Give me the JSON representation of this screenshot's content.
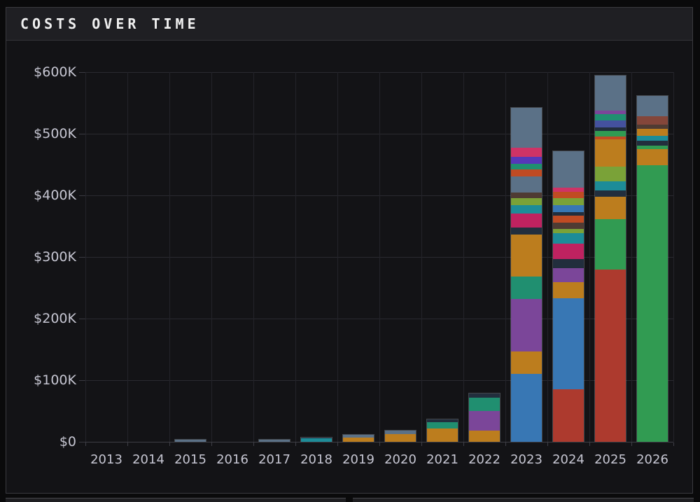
{
  "header": {
    "title": "COSTS OVER TIME"
  },
  "chart_data": {
    "type": "bar",
    "stacked": true,
    "title": "COSTS OVER TIME",
    "xlabel": "",
    "ylabel": "",
    "unit": "USD thousands",
    "ylim": [
      0,
      600
    ],
    "grid": true,
    "yticks": [
      {
        "value": 0,
        "label": "$0"
      },
      {
        "value": 100,
        "label": "$100K"
      },
      {
        "value": 200,
        "label": "$200K"
      },
      {
        "value": 300,
        "label": "$300K"
      },
      {
        "value": 400,
        "label": "$400K"
      },
      {
        "value": 500,
        "label": "$500K"
      },
      {
        "value": 600,
        "label": "$600K"
      }
    ],
    "categories": [
      "2013",
      "2014",
      "2015",
      "2016",
      "2017",
      "2018",
      "2019",
      "2020",
      "2021",
      "2022",
      "2023",
      "2024",
      "2025",
      "2026"
    ],
    "palette": {
      "slate": "#5b7187",
      "blue": "#3877b4",
      "orange": "#bc7d1e",
      "purple": "#7b4699",
      "violet": "#5737b9",
      "teal_green": "#208f70",
      "green": "#319b52",
      "red": "#ad3a2e",
      "crimson": "#bf2260",
      "pink": "#ce3366",
      "navy": "#222e3d",
      "teal_cyan": "#1d8c98",
      "olive": "#7aa238",
      "orange_red": "#c04b23",
      "brown": "#4f3b33",
      "sienna": "#84463a",
      "indigo": "#44519f"
    },
    "bars": [
      {
        "category": "2013",
        "segments": []
      },
      {
        "category": "2014",
        "segments": []
      },
      {
        "category": "2015",
        "segments": [
          [
            "slate",
            4
          ]
        ]
      },
      {
        "category": "2016",
        "segments": []
      },
      {
        "category": "2017",
        "segments": [
          [
            "slate",
            5
          ]
        ]
      },
      {
        "category": "2018",
        "segments": [
          [
            "teal_cyan",
            6
          ],
          [
            "navy",
            2
          ]
        ]
      },
      {
        "category": "2019",
        "segments": [
          [
            "orange",
            7
          ],
          [
            "slate",
            5
          ]
        ]
      },
      {
        "category": "2020",
        "segments": [
          [
            "orange",
            13
          ],
          [
            "slate",
            6
          ]
        ]
      },
      {
        "category": "2021",
        "segments": [
          [
            "orange",
            22
          ],
          [
            "teal_green",
            11
          ],
          [
            "navy",
            5
          ]
        ]
      },
      {
        "category": "2022",
        "segments": [
          [
            "orange",
            18
          ],
          [
            "purple",
            33
          ],
          [
            "teal_green",
            22
          ],
          [
            "navy",
            7
          ]
        ]
      },
      {
        "category": "2023",
        "segments": [
          [
            "blue",
            110
          ],
          [
            "orange",
            37
          ],
          [
            "purple",
            85
          ],
          [
            "teal_green",
            37
          ],
          [
            "orange",
            68
          ],
          [
            "navy",
            11
          ],
          [
            "crimson",
            23
          ],
          [
            "teal_cyan",
            14
          ],
          [
            "olive",
            11
          ],
          [
            "brown",
            9
          ],
          [
            "slate",
            27
          ],
          [
            "orange_red",
            11
          ],
          [
            "teal_green",
            9
          ],
          [
            "violet",
            11
          ],
          [
            "pink",
            15
          ],
          [
            "slate",
            65
          ]
        ]
      },
      {
        "category": "2024",
        "segments": [
          [
            "red",
            85
          ],
          [
            "blue",
            148
          ],
          [
            "orange",
            27
          ],
          [
            "purple",
            23
          ],
          [
            "navy",
            14
          ],
          [
            "crimson",
            25
          ],
          [
            "teal_cyan",
            17
          ],
          [
            "olive",
            7
          ],
          [
            "brown",
            11
          ],
          [
            "orange_red",
            11
          ],
          [
            "navy",
            6
          ],
          [
            "blue",
            11
          ],
          [
            "olive",
            11
          ],
          [
            "orange_red",
            11
          ],
          [
            "pink",
            6
          ],
          [
            "slate",
            60
          ]
        ]
      },
      {
        "category": "2025",
        "segments": [
          [
            "red",
            280
          ],
          [
            "green",
            82
          ],
          [
            "orange",
            36
          ],
          [
            "navy",
            11
          ],
          [
            "teal_cyan",
            15
          ],
          [
            "olive",
            23
          ],
          [
            "orange",
            45
          ],
          [
            "orange_red",
            4
          ],
          [
            "green",
            9
          ],
          [
            "navy",
            6
          ],
          [
            "indigo",
            11
          ],
          [
            "teal_green",
            11
          ],
          [
            "purple",
            6
          ],
          [
            "slate",
            57
          ]
        ]
      },
      {
        "category": "2026",
        "segments": [
          [
            "green",
            450
          ],
          [
            "orange",
            26
          ],
          [
            "green",
            6
          ],
          [
            "navy",
            8
          ],
          [
            "teal_cyan",
            8
          ],
          [
            "orange",
            11
          ],
          [
            "brown",
            7
          ],
          [
            "sienna",
            14
          ],
          [
            "slate",
            32
          ]
        ]
      }
    ],
    "legend": null
  }
}
